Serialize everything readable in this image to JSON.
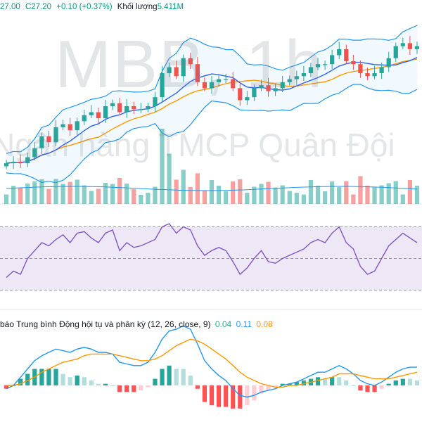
{
  "watermark": {
    "symbol": "MBB, 1h",
    "name": "Ngân hàng TMCP Quân Đội"
  },
  "header": {
    "low": "27.00",
    "close": "C27.20",
    "change": "+0.10 (+0.37%)",
    "volume_label": "Khối lượng",
    "volume_value": "5.411M"
  },
  "macd_legend": {
    "title": "báo Trung bình Động hội tụ và phân kỳ (12, 26, close, 9)",
    "histogram": "0.04",
    "macd": "0.11",
    "signal": "0.08"
  },
  "colors": {
    "up": "#26a69a",
    "down": "#ef5350",
    "bollinger": "#2196f3",
    "ma": "#ff9800",
    "ma_fast": "#2962ff",
    "rsi": "#7e57c2",
    "rsi_band": "#ede7f6",
    "macd": "#2196f3",
    "signal": "#ff9800"
  },
  "chart_data": {
    "type": "line",
    "price": [
      23.3,
      23.35,
      23.3,
      23.5,
      23.8,
      24.2,
      24.0,
      24.5,
      24.6,
      24.4,
      24.7,
      24.9,
      25.0,
      24.8,
      25.2,
      25.3,
      25.0,
      25.2,
      25.1,
      25.1,
      25.2,
      25.5,
      26.3,
      26.5,
      26.2,
      26.8,
      26.6,
      26.0,
      25.8,
      26.0,
      26.1,
      26.1,
      25.8,
      25.4,
      25.5,
      25.8,
      25.9,
      25.7,
      25.8,
      26.0,
      26.1,
      26.2,
      26.3,
      26.5,
      26.6,
      26.6,
      26.9,
      27.1,
      26.7,
      26.6,
      26.3,
      26.2,
      26.3,
      26.5,
      26.8,
      27.2,
      27.3,
      27.1,
      27.2
    ],
    "volume_bars": 59,
    "rsi": [
      38,
      42,
      40,
      50,
      55,
      60,
      58,
      62,
      65,
      60,
      66,
      67,
      63,
      60,
      66,
      68,
      55,
      60,
      57,
      58,
      60,
      62,
      70,
      72,
      66,
      70,
      68,
      58,
      52,
      55,
      57,
      55,
      48,
      40,
      44,
      50,
      55,
      48,
      47,
      50,
      52,
      54,
      56,
      60,
      62,
      60,
      66,
      70,
      60,
      56,
      45,
      40,
      42,
      50,
      58,
      62,
      66,
      63,
      60
    ],
    "macd": [
      -0.02,
      0.0,
      0.05,
      0.1,
      0.15,
      0.18,
      0.2,
      0.22,
      0.21,
      0.2,
      0.22,
      0.23,
      0.22,
      0.2,
      0.2,
      0.19,
      0.14,
      0.13,
      0.12,
      0.12,
      0.14,
      0.2,
      0.28,
      0.33,
      0.34,
      0.36,
      0.34,
      0.25,
      0.15,
      0.1,
      0.06,
      0.03,
      -0.02,
      -0.06,
      -0.07,
      -0.06,
      -0.04,
      -0.03,
      -0.02,
      0.0,
      0.01,
      0.02,
      0.04,
      0.06,
      0.08,
      0.08,
      0.1,
      0.12,
      0.1,
      0.07,
      0.03,
      0.01,
      0.0,
      0.02,
      0.05,
      0.08,
      0.1,
      0.11,
      0.11
    ],
    "signal": [
      0.0,
      0.0,
      0.01,
      0.03,
      0.05,
      0.08,
      0.1,
      0.12,
      0.14,
      0.15,
      0.16,
      0.18,
      0.19,
      0.19,
      0.19,
      0.19,
      0.18,
      0.17,
      0.16,
      0.15,
      0.15,
      0.16,
      0.18,
      0.21,
      0.24,
      0.26,
      0.28,
      0.27,
      0.25,
      0.22,
      0.19,
      0.16,
      0.12,
      0.08,
      0.05,
      0.03,
      0.01,
      0.0,
      -0.01,
      -0.01,
      0.0,
      0.0,
      0.01,
      0.02,
      0.03,
      0.04,
      0.05,
      0.07,
      0.07,
      0.07,
      0.06,
      0.05,
      0.04,
      0.04,
      0.04,
      0.05,
      0.06,
      0.07,
      0.08
    ],
    "rsi_levels": [
      30,
      50,
      70
    ],
    "series": [
      {
        "name": "Khối lượng"
      }
    ]
  }
}
